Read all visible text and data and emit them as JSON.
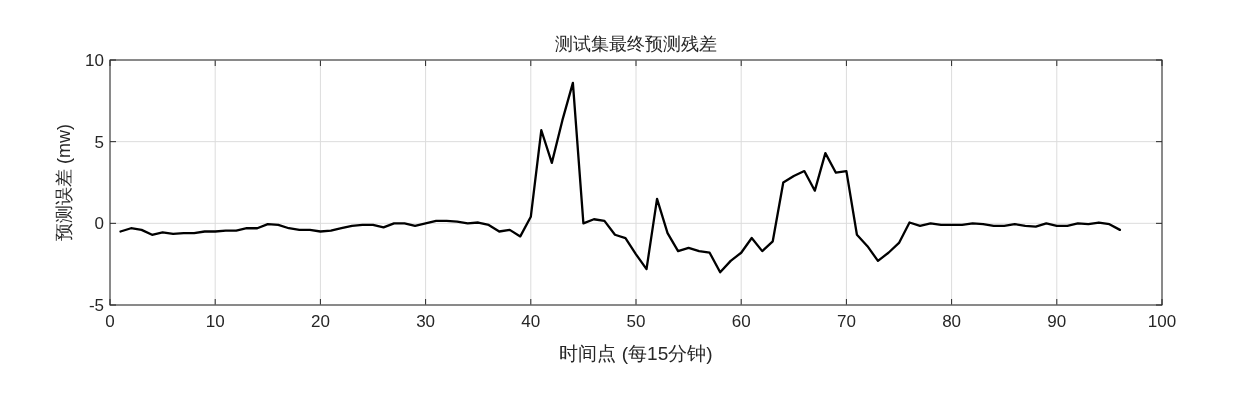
{
  "chart_data": {
    "type": "line",
    "title": "测试集最终预测残差",
    "xlabel": "时间点 (每15分钟)",
    "ylabel": "预测误差 (mw)",
    "x": [
      1,
      2,
      3,
      4,
      5,
      6,
      7,
      8,
      9,
      10,
      11,
      12,
      13,
      14,
      15,
      16,
      17,
      18,
      19,
      20,
      21,
      22,
      23,
      24,
      25,
      26,
      27,
      28,
      29,
      30,
      31,
      32,
      33,
      34,
      35,
      36,
      37,
      38,
      39,
      40,
      41,
      42,
      43,
      44,
      45,
      46,
      47,
      48,
      49,
      50,
      51,
      52,
      53,
      54,
      55,
      56,
      57,
      58,
      59,
      60,
      61,
      62,
      63,
      64,
      65,
      66,
      67,
      68,
      69,
      70,
      71,
      72,
      73,
      74,
      75,
      76,
      77,
      78,
      79,
      80,
      81,
      82,
      83,
      84,
      85,
      86,
      87,
      88,
      89,
      90,
      91,
      92,
      93,
      94,
      95,
      96
    ],
    "series": [
      {
        "color": "#000000",
        "values": [
          -0.5,
          -0.3,
          -0.4,
          -0.7,
          -0.55,
          -0.65,
          -0.6,
          -0.6,
          -0.5,
          -0.5,
          -0.45,
          -0.45,
          -0.3,
          -0.3,
          -0.05,
          -0.1,
          -0.3,
          -0.4,
          -0.4,
          -0.5,
          -0.45,
          -0.3,
          -0.15,
          -0.1,
          -0.1,
          -0.25,
          0,
          0,
          -0.15,
          0,
          0.15,
          0.15,
          0.1,
          0,
          0.05,
          -0.1,
          -0.5,
          -0.4,
          -0.8,
          0.4,
          5.7,
          3.7,
          6.3,
          8.6,
          0,
          0.25,
          0.15,
          -0.7,
          -0.9,
          -1.9,
          -2.8,
          1.5,
          -0.6,
          -1.7,
          -1.5,
          -1.7,
          -1.8,
          -3.0,
          -2.3,
          -1.8,
          -0.9,
          -1.7,
          -1.1,
          2.5,
          2.9,
          3.2,
          2.0,
          4.3,
          3.1,
          3.2,
          -0.7,
          -1.4,
          -2.3,
          -1.8,
          -1.2,
          0.05,
          -0.15,
          0,
          -0.1,
          -0.1,
          -0.1,
          0,
          -0.05,
          -0.15,
          -0.15,
          -0.05,
          -0.15,
          -0.2,
          0,
          -0.15,
          -0.15,
          0,
          -0.05,
          0.05,
          -0.05,
          -0.4
        ]
      }
    ],
    "xlim": [
      0,
      100
    ],
    "xticks": [
      0,
      10,
      20,
      30,
      40,
      50,
      60,
      70,
      80,
      90,
      100
    ],
    "ylim": [
      -5,
      10
    ],
    "yticks": [
      -5,
      0,
      5,
      10
    ],
    "grid": true,
    "marker": "none",
    "line_style": "solid"
  }
}
